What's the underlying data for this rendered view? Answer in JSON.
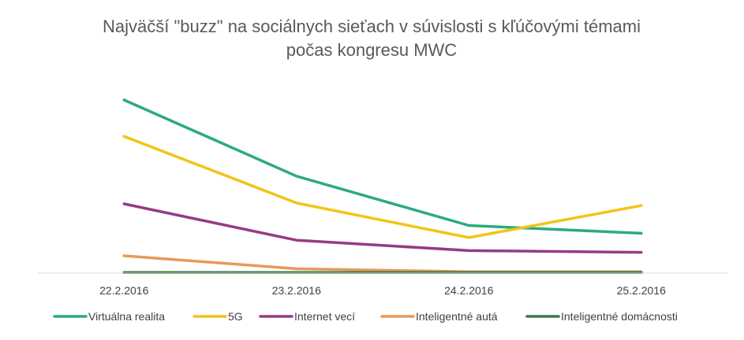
{
  "chart_data": {
    "type": "line",
    "title_lines": [
      "Najväčší \"buzz\" na sociálnych sieťach v súvislosti s kľúčovými témami",
      "počas kongresu MWC"
    ],
    "xlabel": "",
    "ylabel": "",
    "categories": [
      "22.2.2016",
      "23.2.2016",
      "24.2.2016",
      "25.2.2016"
    ],
    "ylim": [
      0,
      100
    ],
    "grid": false,
    "legend_position": "bottom",
    "series": [
      {
        "name": "Virtuálna realita",
        "color": "#2BAA82",
        "values": [
          100,
          56,
          27.5,
          23
        ]
      },
      {
        "name": "5G",
        "color": "#F2C418",
        "values": [
          79,
          40.5,
          20.5,
          39
        ]
      },
      {
        "name": "Internet vecí",
        "color": "#983A84",
        "values": [
          40,
          19,
          13,
          12
        ]
      },
      {
        "name": "Inteligentné autá",
        "color": "#E8995A",
        "values": [
          10,
          2.5,
          0.8,
          0.8
        ]
      },
      {
        "name": "Inteligentné domácnosti",
        "color": "#3D7A47",
        "values": [
          0.3,
          0.3,
          0.3,
          0.3
        ]
      }
    ]
  }
}
